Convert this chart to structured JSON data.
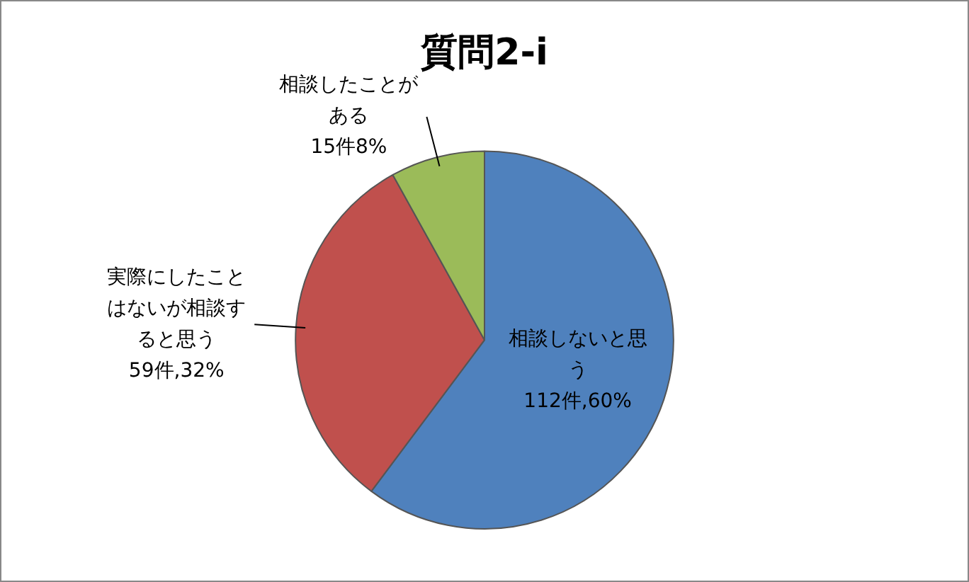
{
  "chart_data": {
    "type": "pie",
    "title": "質問2-i",
    "categories": [
      "相談しないと思う",
      "実際にしたことはないが相談すると思う",
      "相談したことがある"
    ],
    "values": [
      112,
      59,
      15
    ],
    "colors": [
      "#4f81bd",
      "#c0504d",
      "#9bbb59"
    ],
    "value_labels": [
      "112件,60%",
      "59件,32%",
      "15件8%"
    ]
  }
}
